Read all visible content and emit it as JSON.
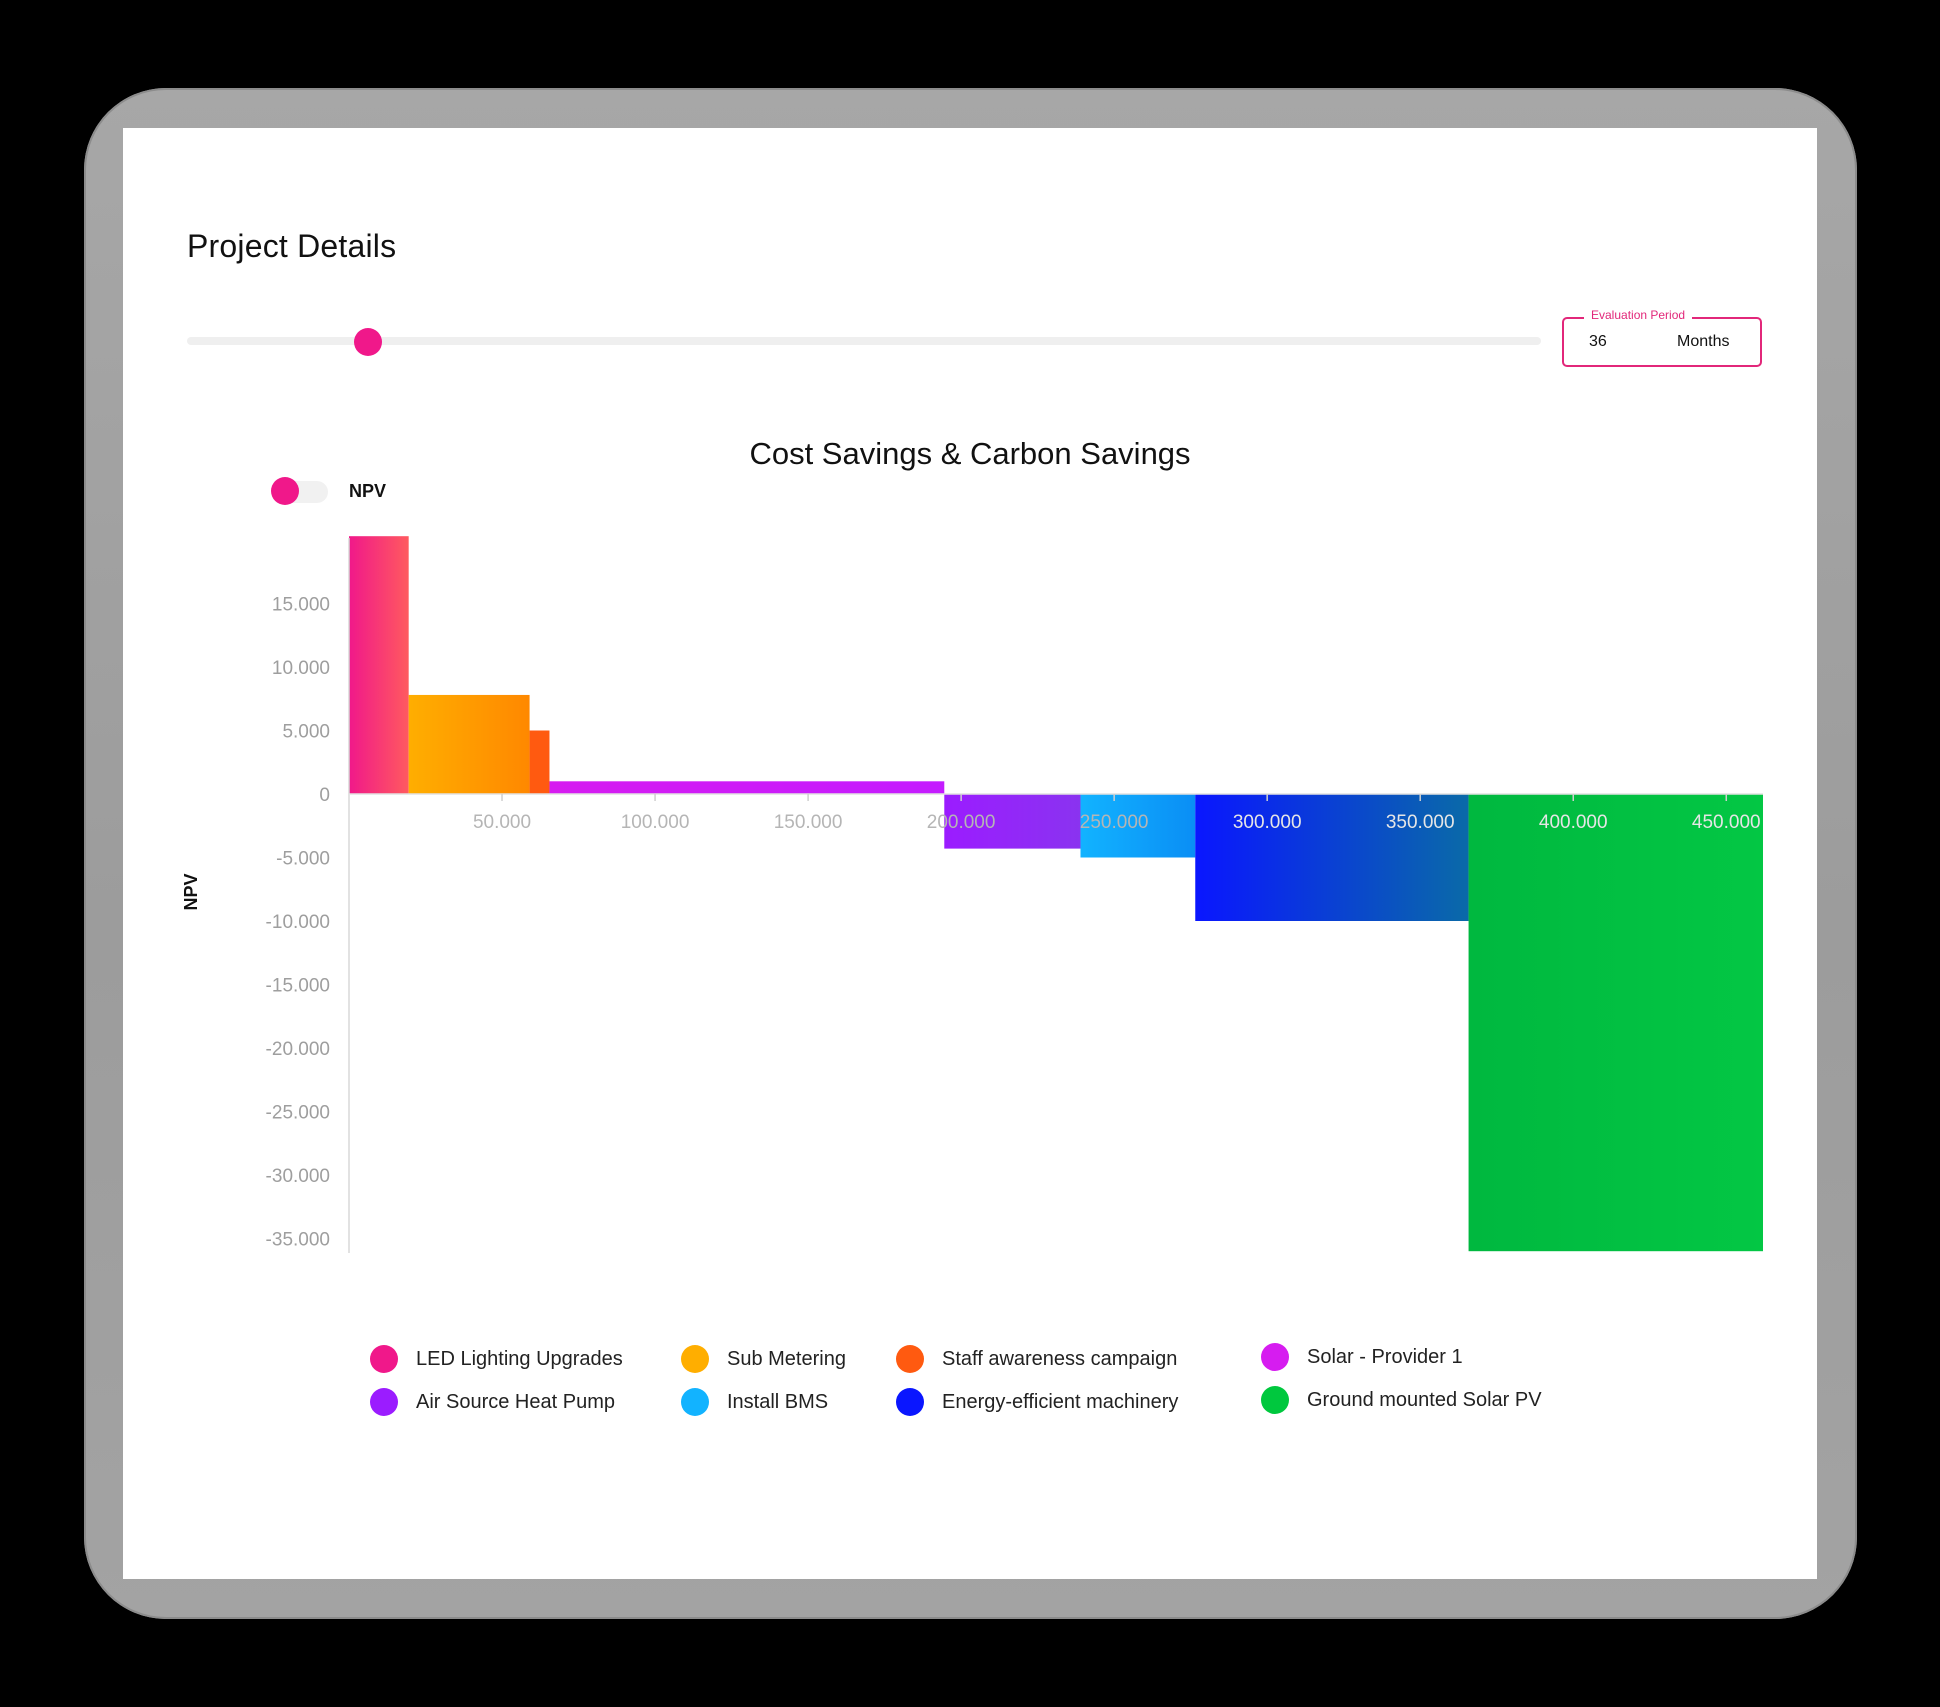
{
  "page": {
    "title": "Project Details"
  },
  "slider": {
    "value": 36,
    "min": 0,
    "max": 180
  },
  "evaluation_period": {
    "label": "Evaluation Period",
    "value": "36",
    "unit": "Months"
  },
  "toggle": {
    "label": "NPV",
    "on": true
  },
  "chart_data": {
    "type": "bar",
    "variant": "variable-width (marginal abatement style)",
    "title": "Cost Savings & Carbon Savings",
    "ylabel": "NPV",
    "xlabel": "",
    "xlim": [
      0,
      462000
    ],
    "ylim": [
      -36000,
      20500
    ],
    "x_ticks": [
      50000,
      100000,
      150000,
      200000,
      250000,
      300000,
      350000,
      400000,
      450000
    ],
    "x_tick_labels": [
      "50.000",
      "100.000",
      "150.000",
      "200.000",
      "250.000",
      "300.000",
      "350.000",
      "400.000",
      "450.000"
    ],
    "y_ticks": [
      15000,
      10000,
      5000,
      0,
      -5000,
      -10000,
      -15000,
      -20000,
      -25000,
      -30000,
      -35000
    ],
    "y_tick_labels": [
      "15.000",
      "10.000",
      "5.000",
      "0",
      "-5.000",
      "-10.000",
      "-15.000",
      "-20.000",
      "-25.000",
      "-30.000",
      "-35.000"
    ],
    "grid": false,
    "legend_position": "bottom",
    "series": [
      {
        "name": "LED Lighting Upgrades",
        "x_start": 0,
        "x_end": 19500,
        "value": 20300,
        "color": "#f0188a",
        "color2": "#ff5a5f"
      },
      {
        "name": "Sub Metering",
        "x_start": 19500,
        "x_end": 59000,
        "value": 7800,
        "color": "#ffae00",
        "color2": "#ff8800"
      },
      {
        "name": "Staff awareness campaign",
        "x_start": 59000,
        "x_end": 65500,
        "value": 5000,
        "color": "#ff5a10",
        "color2": "#ff5a10"
      },
      {
        "name": "Solar - Provider 1",
        "x_start": 65500,
        "x_end": 194500,
        "value": 1000,
        "color": "#d61cf0",
        "color2": "#c41cff"
      },
      {
        "name": "Air Source Heat Pump",
        "x_start": 194500,
        "x_end": 239000,
        "value": -4300,
        "color": "#9b1cff",
        "color2": "#8a33f0"
      },
      {
        "name": "Install BMS",
        "x_start": 239000,
        "x_end": 276500,
        "value": -5000,
        "color": "#12b3ff",
        "color2": "#0a8ef5"
      },
      {
        "name": "Energy-efficient machinery",
        "x_start": 276500,
        "x_end": 365800,
        "value": -10000,
        "color": "#0a16ff",
        "color2": "#0a6aa8"
      },
      {
        "name": "Ground mounted Solar PV",
        "x_start": 365800,
        "x_end": 462000,
        "value": -36000,
        "color": "#00b83f",
        "color2": "#03c744"
      }
    ]
  },
  "legend": [
    {
      "label": "LED Lighting Upgrades",
      "color": "#f0188a"
    },
    {
      "label": "Air Source Heat Pump",
      "color": "#9b1cff"
    },
    {
      "label": "Sub Metering",
      "color": "#ffae00"
    },
    {
      "label": "Install BMS",
      "color": "#12b3ff"
    },
    {
      "label": "Staff awareness campaign",
      "color": "#ff5a10"
    },
    {
      "label": "Energy-efficient machinery",
      "color": "#0a16ff"
    },
    {
      "label": "Solar - Provider 1",
      "color": "#d61cf0"
    },
    {
      "label": "Ground mounted Solar PV",
      "color": "#00c83e"
    }
  ]
}
